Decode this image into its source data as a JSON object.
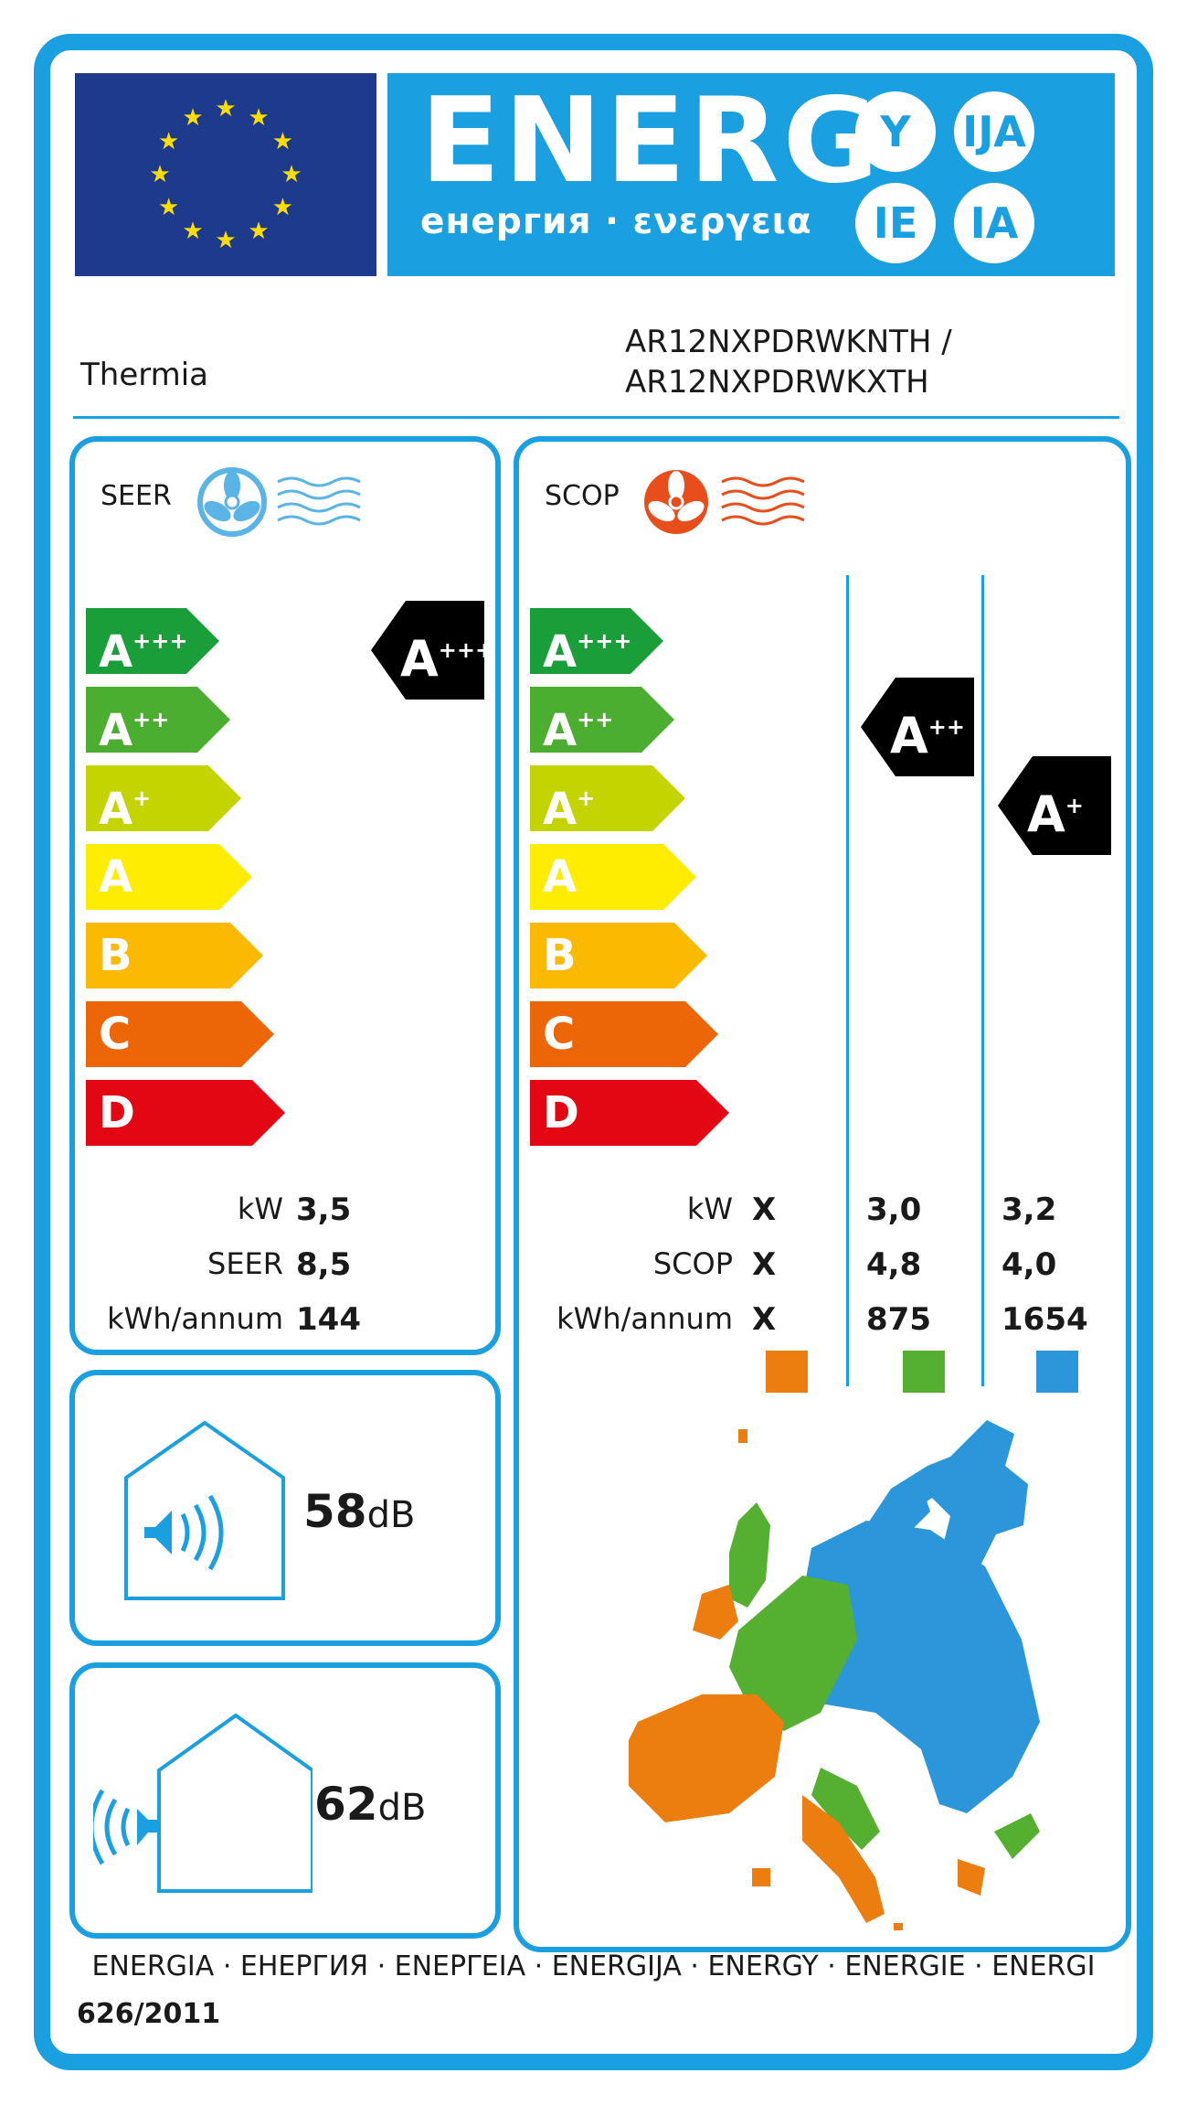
{
  "header": {
    "energy_word": "ENERG",
    "energy_sub": "енергия · ενεργεια",
    "suffixes": [
      "Y",
      "IJA",
      "IE",
      "IA"
    ],
    "flag_icon": "eu-flag-icon"
  },
  "supplier": "Thermia",
  "model": [
    "AR12NXPDRWKNTH /",
    "AR12NXPDRWKXTH"
  ],
  "classes": [
    "A+++",
    "A++",
    "A+",
    "A",
    "B",
    "C",
    "D"
  ],
  "class_colors": [
    "#1a9e3a",
    "#4cae31",
    "#c4d400",
    "#ffed00",
    "#fbba00",
    "#ec6608",
    "#e30613"
  ],
  "cooling": {
    "title": "SEER",
    "icon": "fan-cool-air-icon",
    "rating": "A+++",
    "rows": [
      {
        "label": "kW",
        "value": "3,5"
      },
      {
        "label": "SEER",
        "value": "8,5"
      },
      {
        "label": "kWh/annum",
        "value": "144"
      }
    ]
  },
  "heating": {
    "title": "SCOP",
    "icon": "fan-warm-air-icon",
    "ratings": {
      "average": "A++",
      "colder": "A+"
    },
    "rows": [
      {
        "label": "kW",
        "warmer": "X",
        "average": "3,0",
        "colder": "3,2"
      },
      {
        "label": "SCOP",
        "warmer": "X",
        "average": "4,8",
        "colder": "4,0"
      },
      {
        "label": "kWh/annum",
        "warmer": "X",
        "average": "875",
        "colder": "1654"
      }
    ],
    "zone_colors": {
      "warmer": "#ec7d0f",
      "average": "#55b032",
      "colder": "#2b96d9"
    },
    "map_icon": "europe-climate-zones-map-icon"
  },
  "noise": {
    "indoor": {
      "value": "58",
      "unit": "dB",
      "icon": "indoor-noise-icon"
    },
    "outdoor": {
      "value": "62",
      "unit": "dB",
      "icon": "outdoor-noise-icon"
    }
  },
  "footer": {
    "languages": "ENERGIA · ЕНЕРГИЯ · ΕΝΕΡΓΕΙΑ · ENERGIJA · ENERGY · ENERGIE · ENERGI",
    "regulation": "626/2011"
  }
}
